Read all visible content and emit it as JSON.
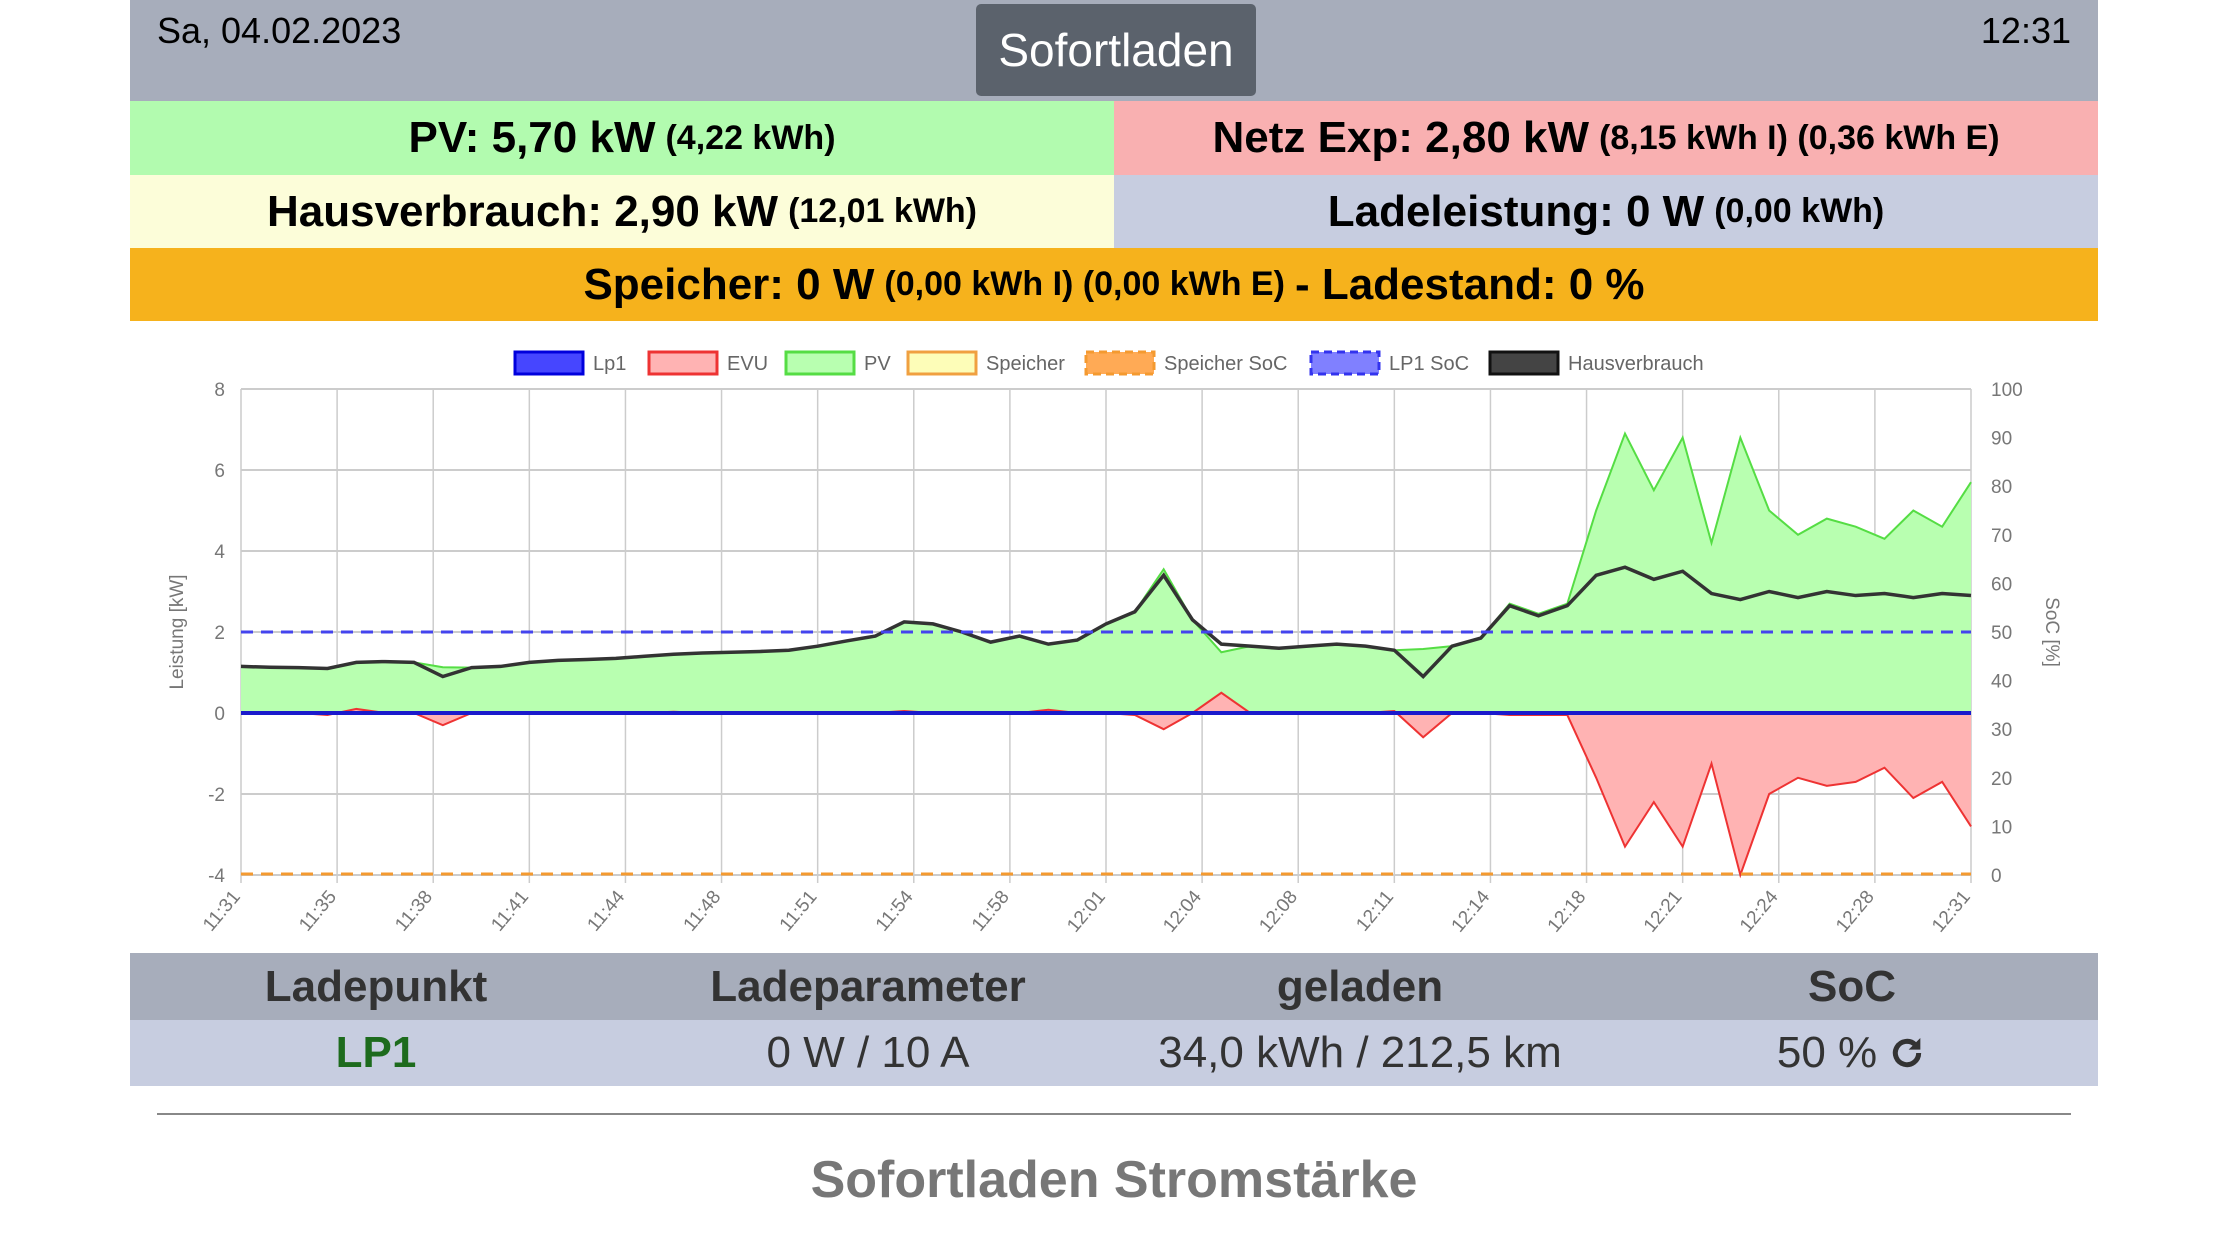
{
  "header": {
    "date": "Sa, 04.02.2023",
    "time": "12:31",
    "mode_button": "Sofortladen"
  },
  "summary": {
    "pv": {
      "main": "PV: 5,70 kW",
      "detail": "(4,22 kWh)",
      "color": "#b2fbaf"
    },
    "netz": {
      "main": "Netz Exp: 2,80 kW",
      "detail": "(8,15 kWh I) (0,36 kWh E)",
      "color": "#f9b0b1"
    },
    "haus": {
      "main": "Hausverbrauch: 2,90 kW",
      "detail": "(12,01 kWh)",
      "color": "#fcfdd9"
    },
    "lade": {
      "main": "Ladeleistung: 0 W",
      "detail": "(0,00 kWh)",
      "color": "#c7cde0"
    },
    "speicher": {
      "main": "Speicher: 0 W",
      "detail": "(0,00 kWh I) (0,00 kWh E)",
      "suffix": "- Ladestand: 0 %",
      "color": "#f6b21c"
    }
  },
  "chart_data": {
    "type": "line",
    "ylabel": "Leistung [kW]",
    "y2label": "SoC [%]",
    "ylim": [
      -4,
      8
    ],
    "y2lim": [
      0,
      100
    ],
    "yticks": [
      "8",
      "6",
      "4",
      "2",
      "0",
      "-2",
      "-4"
    ],
    "y2ticks": [
      "100",
      "90",
      "80",
      "70",
      "60",
      "50",
      "40",
      "30",
      "20",
      "10",
      "0"
    ],
    "xlim_minutes": [
      0,
      60
    ],
    "xticks": [
      "11:31",
      "11:35",
      "11:38",
      "11:41",
      "11:44",
      "11:48",
      "11:51",
      "11:54",
      "11:58",
      "12:01",
      "12:04",
      "12:08",
      "12:11",
      "12:14",
      "12:18",
      "12:21",
      "12:24",
      "12:28",
      "12:31"
    ],
    "grid": true,
    "legend_position": "top",
    "legend": [
      {
        "name": "Lp1",
        "fill": "#4646ff",
        "stroke": "#0000dd",
        "dashed": false
      },
      {
        "name": "EVU",
        "fill": "#ffb3b3",
        "stroke": "#ee3333",
        "dashed": false
      },
      {
        "name": "PV",
        "fill": "#b8ffb0",
        "stroke": "#55dd44",
        "dashed": false
      },
      {
        "name": "Speicher",
        "fill": "#fdfdb8",
        "stroke": "#f0a040",
        "dashed": false
      },
      {
        "name": "Speicher SoC",
        "fill": "#ffaa55",
        "stroke": "#f49a30",
        "dashed": true
      },
      {
        "name": "LP1 SoC",
        "fill": "#8080ff",
        "stroke": "#3333ee",
        "dashed": true
      },
      {
        "name": "Hausverbrauch",
        "fill": "#444444",
        "stroke": "#111111",
        "dashed": false
      }
    ],
    "x_minutes": [
      0,
      1,
      2,
      3,
      4,
      5,
      6,
      7,
      8,
      9,
      10,
      11,
      12,
      13,
      14,
      15,
      16,
      17,
      18,
      19,
      20,
      21,
      22,
      23,
      24,
      25,
      26,
      27,
      28,
      29,
      30,
      31,
      32,
      33,
      34,
      35,
      36,
      37,
      38,
      39,
      40,
      41,
      42,
      43,
      44,
      45,
      46,
      47,
      48,
      49,
      50,
      51,
      52,
      53,
      54,
      55,
      56,
      57,
      58,
      59,
      60
    ],
    "series": [
      {
        "name": "PV",
        "axis": "left",
        "values": [
          1.15,
          1.14,
          1.12,
          1.1,
          1.25,
          1.27,
          1.25,
          1.13,
          1.12,
          1.15,
          1.25,
          1.3,
          1.32,
          1.35,
          1.4,
          1.45,
          1.48,
          1.5,
          1.52,
          1.55,
          1.65,
          1.78,
          1.9,
          2.25,
          2.2,
          2.0,
          1.75,
          1.9,
          1.7,
          1.8,
          2.2,
          2.5,
          3.55,
          2.3,
          1.5,
          1.65,
          1.6,
          1.65,
          1.7,
          1.65,
          1.55,
          1.58,
          1.65,
          1.85,
          2.7,
          2.45,
          2.7,
          5.0,
          6.9,
          5.5,
          6.8,
          4.2,
          6.8,
          5.0,
          4.4,
          4.8,
          4.6,
          4.3,
          5.0,
          4.6,
          5.7
        ]
      },
      {
        "name": "Hausverbrauch",
        "axis": "left",
        "values": [
          1.15,
          1.13,
          1.12,
          1.1,
          1.25,
          1.27,
          1.25,
          0.9,
          1.12,
          1.15,
          1.25,
          1.3,
          1.32,
          1.35,
          1.4,
          1.45,
          1.48,
          1.5,
          1.52,
          1.55,
          1.65,
          1.78,
          1.9,
          2.25,
          2.2,
          2.0,
          1.75,
          1.9,
          1.7,
          1.8,
          2.2,
          2.5,
          3.4,
          2.3,
          1.7,
          1.65,
          1.6,
          1.65,
          1.7,
          1.65,
          1.55,
          0.9,
          1.65,
          1.85,
          2.65,
          2.4,
          2.65,
          3.4,
          3.6,
          3.3,
          3.5,
          2.95,
          2.8,
          3.0,
          2.85,
          3.0,
          2.9,
          2.95,
          2.85,
          2.95,
          2.9
        ]
      },
      {
        "name": "EVU",
        "axis": "left",
        "values": [
          0,
          0,
          0,
          -0.05,
          0.1,
          0,
          0,
          -0.3,
          0,
          0,
          0,
          0,
          0,
          0,
          0,
          0.03,
          0,
          0,
          0,
          0,
          0,
          0,
          0,
          0.05,
          0,
          0,
          0,
          0,
          0.08,
          0,
          0,
          -0.05,
          -0.4,
          0,
          0.5,
          0,
          0,
          0,
          0,
          0,
          0.05,
          -0.6,
          0,
          0,
          -0.05,
          -0.05,
          -0.05,
          -1.6,
          -3.3,
          -2.2,
          -3.3,
          -1.25,
          -4.0,
          -2.0,
          -1.6,
          -1.8,
          -1.7,
          -1.35,
          -2.1,
          -1.7,
          -2.8
        ]
      },
      {
        "name": "Lp1",
        "axis": "left",
        "constant": 0
      },
      {
        "name": "LP1 SoC",
        "axis": "right",
        "constant": 50
      },
      {
        "name": "Speicher SoC",
        "axis": "right",
        "constant": 0
      }
    ]
  },
  "table": {
    "headers": [
      "Ladepunkt",
      "Ladeparameter",
      "geladen",
      "SoC"
    ],
    "row": {
      "name": "LP1",
      "params": "0 W / 10 A",
      "charged": "34,0 kWh / 212,5 km",
      "soc": "50 %"
    },
    "refresh_icon": "refresh-icon"
  },
  "section_title": "Sofortladen Stromstärke"
}
